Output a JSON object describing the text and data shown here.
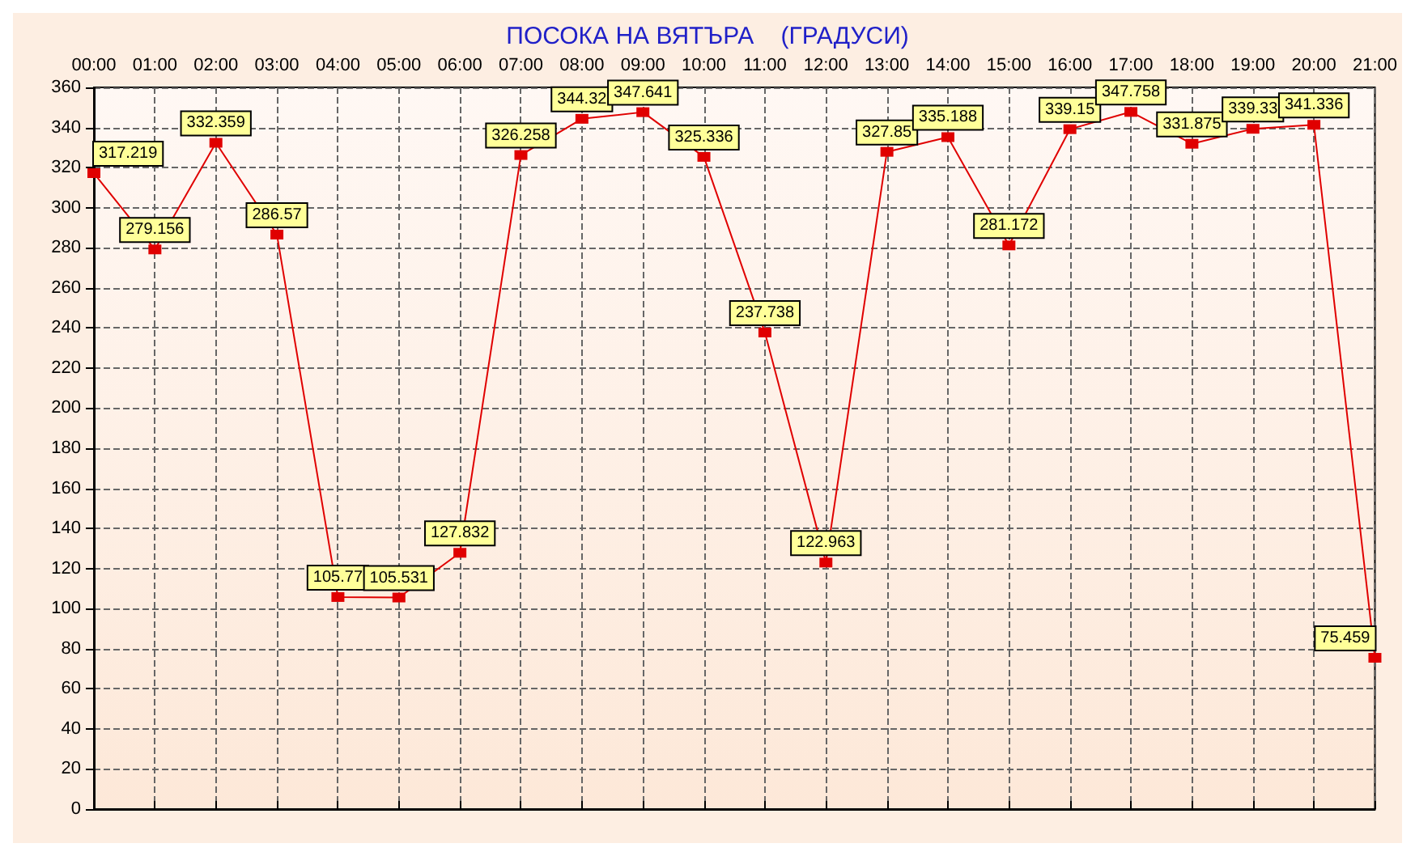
{
  "chart_data": {
    "type": "line",
    "title": "ПОСОКА НА ВЯТЪРА    (ГРАДУСИ)",
    "categories": [
      "00:00",
      "01:00",
      "02:00",
      "03:00",
      "04:00",
      "05:00",
      "06:00",
      "07:00",
      "08:00",
      "09:00",
      "10:00",
      "11:00",
      "12:00",
      "13:00",
      "14:00",
      "15:00",
      "16:00",
      "17:00",
      "18:00",
      "19:00",
      "20:00",
      "21:00"
    ],
    "values": [
      317.219,
      279.156,
      332.359,
      286.57,
      105.77,
      105.531,
      127.832,
      326.258,
      344.32,
      347.641,
      325.336,
      237.738,
      122.963,
      327.85,
      335.188,
      281.172,
      339.15,
      347.758,
      331.875,
      339.33,
      341.336,
      75.459
    ],
    "color": "#e00000",
    "ylim": [
      0,
      360
    ],
    "yticks": [
      0,
      20,
      40,
      60,
      80,
      100,
      120,
      140,
      160,
      180,
      200,
      220,
      240,
      260,
      280,
      300,
      320,
      340,
      360
    ],
    "grid": true,
    "marker": "square",
    "line_style": "solid",
    "data_labels": true
  }
}
